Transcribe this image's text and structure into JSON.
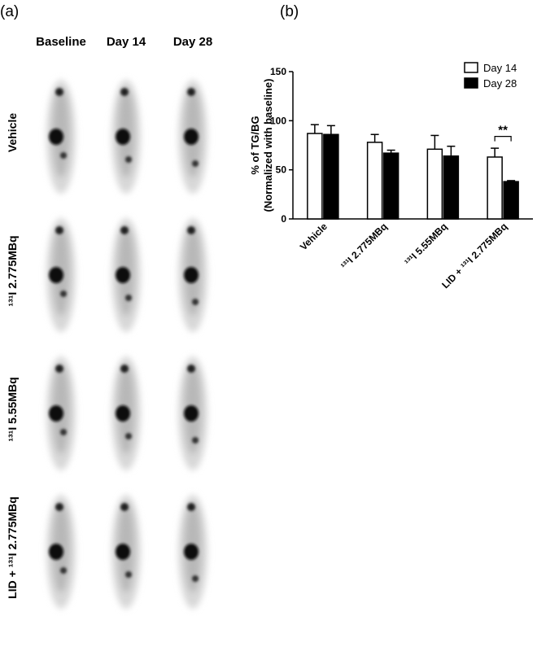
{
  "panel_a": {
    "label": "(a)",
    "columns": [
      "Baseline",
      "Day 14",
      "Day 28"
    ],
    "rows": [
      "Vehicle",
      "¹³¹I 2.775MBq",
      "¹³¹I 5.55MBq",
      "LID + ¹³¹I 2.775MBq"
    ]
  },
  "chart_data": {
    "type": "bar",
    "panel_label": "(b)",
    "y_label": [
      "% of TG/BG",
      "(Normalized with baseline)"
    ],
    "categories": [
      "Vehicle",
      "¹³¹I 2.775MBq",
      "¹³¹I 5.55MBq",
      "LID + ¹³¹I 2.775MBq"
    ],
    "series": [
      {
        "name": "Day 14",
        "color": "#ffffff",
        "values": [
          87,
          78,
          71,
          63
        ],
        "errors": [
          9,
          8,
          14,
          9
        ]
      },
      {
        "name": "Day 28",
        "color": "#000000",
        "values": [
          86,
          67,
          64,
          38
        ],
        "errors": [
          9,
          3,
          10,
          1
        ]
      }
    ],
    "ylim": [
      0,
      150
    ],
    "yticks": [
      0,
      50,
      100,
      150
    ],
    "legend": "upper right",
    "annotations": [
      "**"
    ]
  }
}
